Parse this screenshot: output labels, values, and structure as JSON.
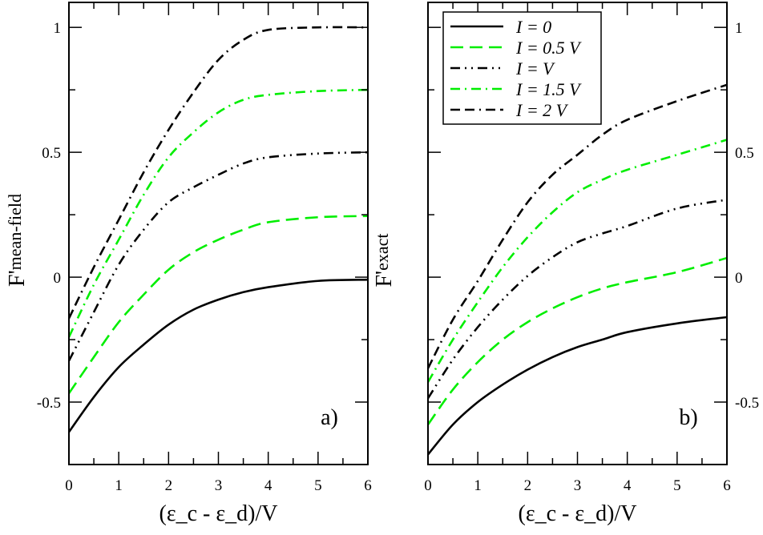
{
  "chart_data": [
    {
      "type": "line",
      "panel_label": "a)",
      "xlabel": "(ε_c - ε_d)/V",
      "ylabel": "F'_mean-field",
      "ylabel_main": "F'",
      "ylabel_sub": "mean-field",
      "xlim": [
        0,
        6
      ],
      "ylim": [
        -0.75,
        1.1
      ],
      "xticks": [
        0,
        1,
        2,
        3,
        4,
        5,
        6
      ],
      "yticks": [
        -0.5,
        0,
        0.5,
        1
      ],
      "ytick_labels": [
        "-0.5",
        "0",
        "0.5",
        "1"
      ],
      "ytick_side": "left",
      "grid": false,
      "x": [
        0,
        0.5,
        1,
        1.5,
        2,
        2.5,
        3,
        3.5,
        4,
        5,
        6
      ],
      "series": [
        {
          "name": "I = 0",
          "color": "#000000",
          "style": "solid",
          "values": [
            -0.62,
            -0.48,
            -0.36,
            -0.27,
            -0.19,
            -0.13,
            -0.09,
            -0.06,
            -0.04,
            -0.015,
            -0.01
          ]
        },
        {
          "name": "I = 0.5 V",
          "color": "#00ee00",
          "style": "dashed",
          "values": [
            -0.465,
            -0.32,
            -0.18,
            -0.07,
            0.03,
            0.1,
            0.15,
            0.19,
            0.22,
            0.24,
            0.245
          ]
        },
        {
          "name": "I = V",
          "color": "#000000",
          "style": "dash-dot-dot",
          "values": [
            -0.335,
            -0.14,
            0.05,
            0.19,
            0.3,
            0.36,
            0.41,
            0.455,
            0.48,
            0.495,
            0.5
          ]
        },
        {
          "name": "I = 1.5 V",
          "color": "#00ee00",
          "style": "dash-dot",
          "values": [
            -0.24,
            -0.03,
            0.15,
            0.33,
            0.48,
            0.58,
            0.66,
            0.71,
            0.73,
            0.745,
            0.75
          ]
        },
        {
          "name": "I = 2 V",
          "color": "#000000",
          "style": "dash-dash-dot",
          "values": [
            -0.165,
            0.04,
            0.23,
            0.42,
            0.59,
            0.74,
            0.87,
            0.95,
            0.99,
            1.0,
            1.0
          ]
        }
      ]
    },
    {
      "type": "line",
      "panel_label": "b)",
      "xlabel": "(ε_c - ε_d)/V",
      "ylabel": "F'_exact",
      "ylabel_main": "F'",
      "ylabel_sub": "exact",
      "xlim": [
        0,
        6
      ],
      "ylim": [
        -0.75,
        1.1
      ],
      "xticks": [
        0,
        1,
        2,
        3,
        4,
        5,
        6
      ],
      "yticks": [
        -0.5,
        0,
        0.5,
        1
      ],
      "ytick_labels": [
        "-0.5",
        "0",
        "0.5",
        "1"
      ],
      "ytick_side": "right",
      "grid": false,
      "legend_position": "top-left",
      "x": [
        0,
        0.5,
        1,
        1.5,
        2,
        2.5,
        3,
        3.5,
        4,
        5,
        6
      ],
      "series": [
        {
          "name": "I = 0",
          "color": "#000000",
          "style": "solid",
          "values": [
            -0.71,
            -0.59,
            -0.5,
            -0.43,
            -0.37,
            -0.32,
            -0.28,
            -0.25,
            -0.22,
            -0.185,
            -0.16
          ]
        },
        {
          "name": "I = 0.5 V",
          "color": "#00ee00",
          "style": "dashed",
          "values": [
            -0.59,
            -0.45,
            -0.34,
            -0.25,
            -0.18,
            -0.125,
            -0.08,
            -0.045,
            -0.02,
            0.02,
            0.077
          ]
        },
        {
          "name": "I = V",
          "color": "#000000",
          "style": "dash-dot-dot",
          "values": [
            -0.485,
            -0.33,
            -0.2,
            -0.09,
            0.005,
            0.08,
            0.14,
            0.175,
            0.205,
            0.275,
            0.31
          ]
        },
        {
          "name": "I = 1.5 V",
          "color": "#00ee00",
          "style": "dash-dot",
          "values": [
            -0.42,
            -0.25,
            -0.1,
            0.04,
            0.16,
            0.26,
            0.34,
            0.39,
            0.43,
            0.49,
            0.55
          ]
        },
        {
          "name": "I = 2 V",
          "color": "#000000",
          "style": "dash-dash-dot",
          "values": [
            -0.365,
            -0.17,
            -0.015,
            0.15,
            0.3,
            0.41,
            0.49,
            0.57,
            0.63,
            0.705,
            0.77
          ]
        }
      ]
    }
  ]
}
